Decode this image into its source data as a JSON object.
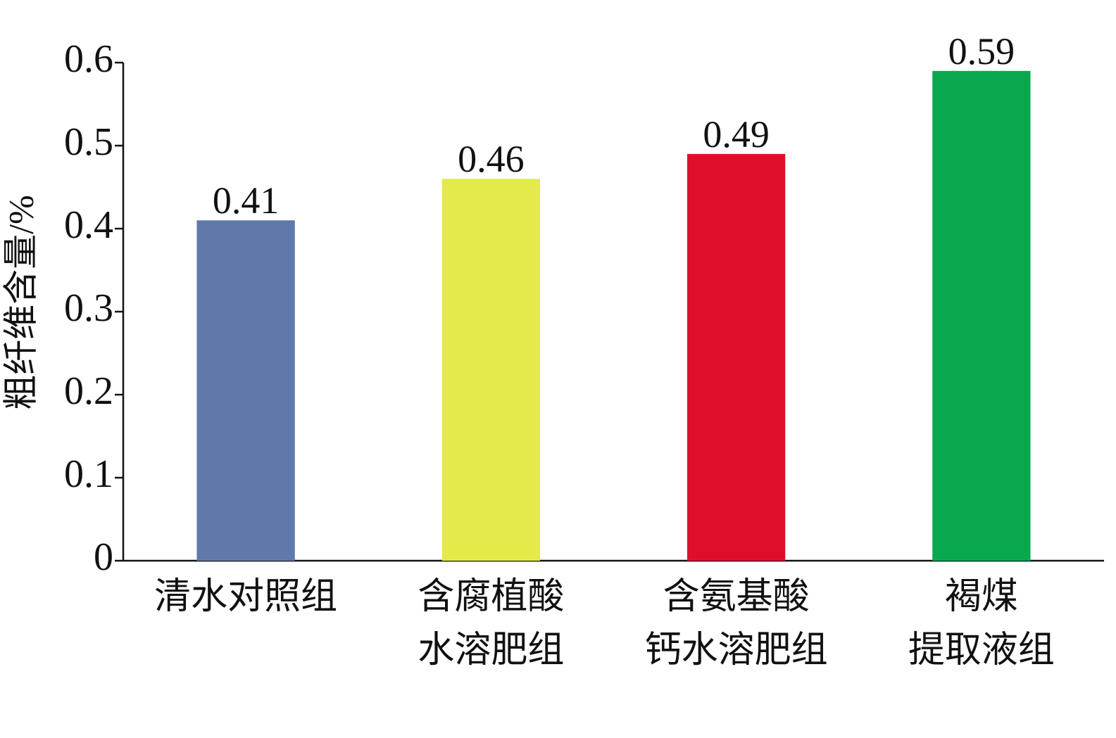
{
  "chart_data": {
    "type": "bar",
    "y_label": "粗纤维含量/%",
    "categories": [
      [
        "清水对照组"
      ],
      [
        "含腐植酸",
        "水溶肥组"
      ],
      [
        "含氨基酸",
        "钙水溶肥组"
      ],
      [
        "褐煤",
        "提取液组"
      ]
    ],
    "values": [
      0.41,
      0.46,
      0.49,
      0.59
    ],
    "colors": [
      "#5f79aa",
      "#e3ea4a",
      "#df0f2c",
      "#09a84f"
    ],
    "ylim": [
      0,
      0.6
    ],
    "yticks": [
      0,
      0.1,
      0.2,
      0.3,
      0.4,
      0.5,
      0.6
    ],
    "grid": false
  }
}
